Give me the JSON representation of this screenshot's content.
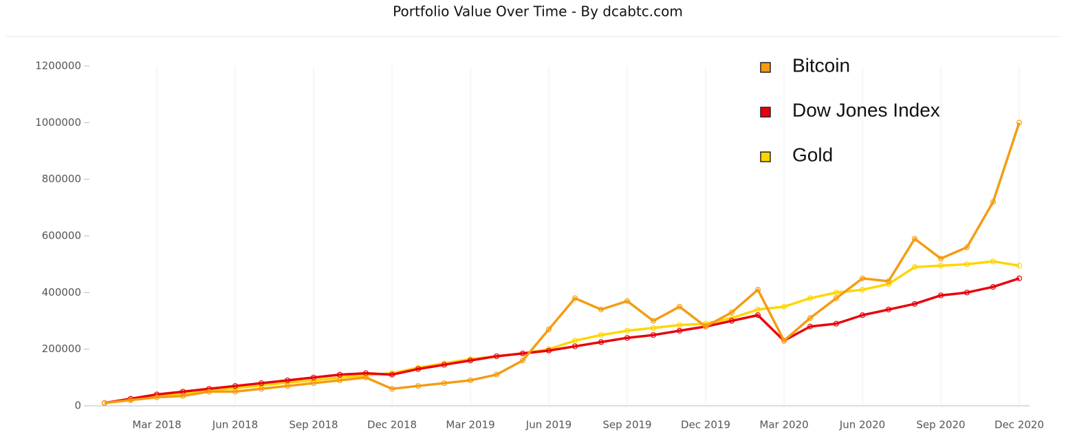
{
  "chart_data": {
    "type": "line",
    "title": "Portfolio Value Over Time - By dcabtc.com",
    "categories": [
      null,
      null,
      "Mar 2018",
      null,
      null,
      "Jun 2018",
      null,
      null,
      "Sep 2018",
      null,
      null,
      "Dec 2018",
      null,
      null,
      "Mar 2019",
      null,
      null,
      "Jun 2019",
      null,
      null,
      "Sep 2019",
      null,
      null,
      "Dec 2019",
      null,
      null,
      "Mar 2020",
      null,
      null,
      "Jun 2020",
      null,
      null,
      "Sep 2020",
      null,
      null,
      "Dec 2020"
    ],
    "series": [
      {
        "name": "Bitcoin",
        "color": "#f39c12",
        "values": [
          10000,
          20000,
          30000,
          35000,
          50000,
          50000,
          60000,
          70000,
          80000,
          90000,
          100000,
          60000,
          70000,
          80000,
          90000,
          110000,
          160000,
          270000,
          380000,
          340000,
          370000,
          300000,
          350000,
          280000,
          330000,
          410000,
          230000,
          310000,
          380000,
          450000,
          440000,
          590000,
          520000,
          560000,
          720000,
          1000000
        ]
      },
      {
        "name": "Dow Jones Index",
        "color": "#e8000b",
        "values": [
          10000,
          25000,
          40000,
          50000,
          60000,
          70000,
          80000,
          90000,
          100000,
          110000,
          115000,
          110000,
          130000,
          145000,
          160000,
          175000,
          185000,
          195000,
          210000,
          225000,
          240000,
          250000,
          265000,
          280000,
          300000,
          320000,
          230000,
          280000,
          290000,
          320000,
          340000,
          360000,
          390000,
          400000,
          420000,
          450000
        ]
      },
      {
        "name": "Gold",
        "color": "#ffd500",
        "values": [
          10000,
          22000,
          35000,
          45000,
          55000,
          62000,
          72000,
          82000,
          90000,
          100000,
          108000,
          115000,
          135000,
          150000,
          165000,
          175000,
          185000,
          200000,
          230000,
          250000,
          265000,
          275000,
          285000,
          290000,
          310000,
          340000,
          350000,
          380000,
          400000,
          410000,
          430000,
          490000,
          495000,
          500000,
          510000,
          495000
        ]
      }
    ],
    "ylim": [
      0,
      1200000
    ],
    "yticks": [
      0,
      200000,
      400000,
      600000,
      800000,
      1000000,
      1200000
    ],
    "grid": true,
    "legend": "top-right"
  }
}
